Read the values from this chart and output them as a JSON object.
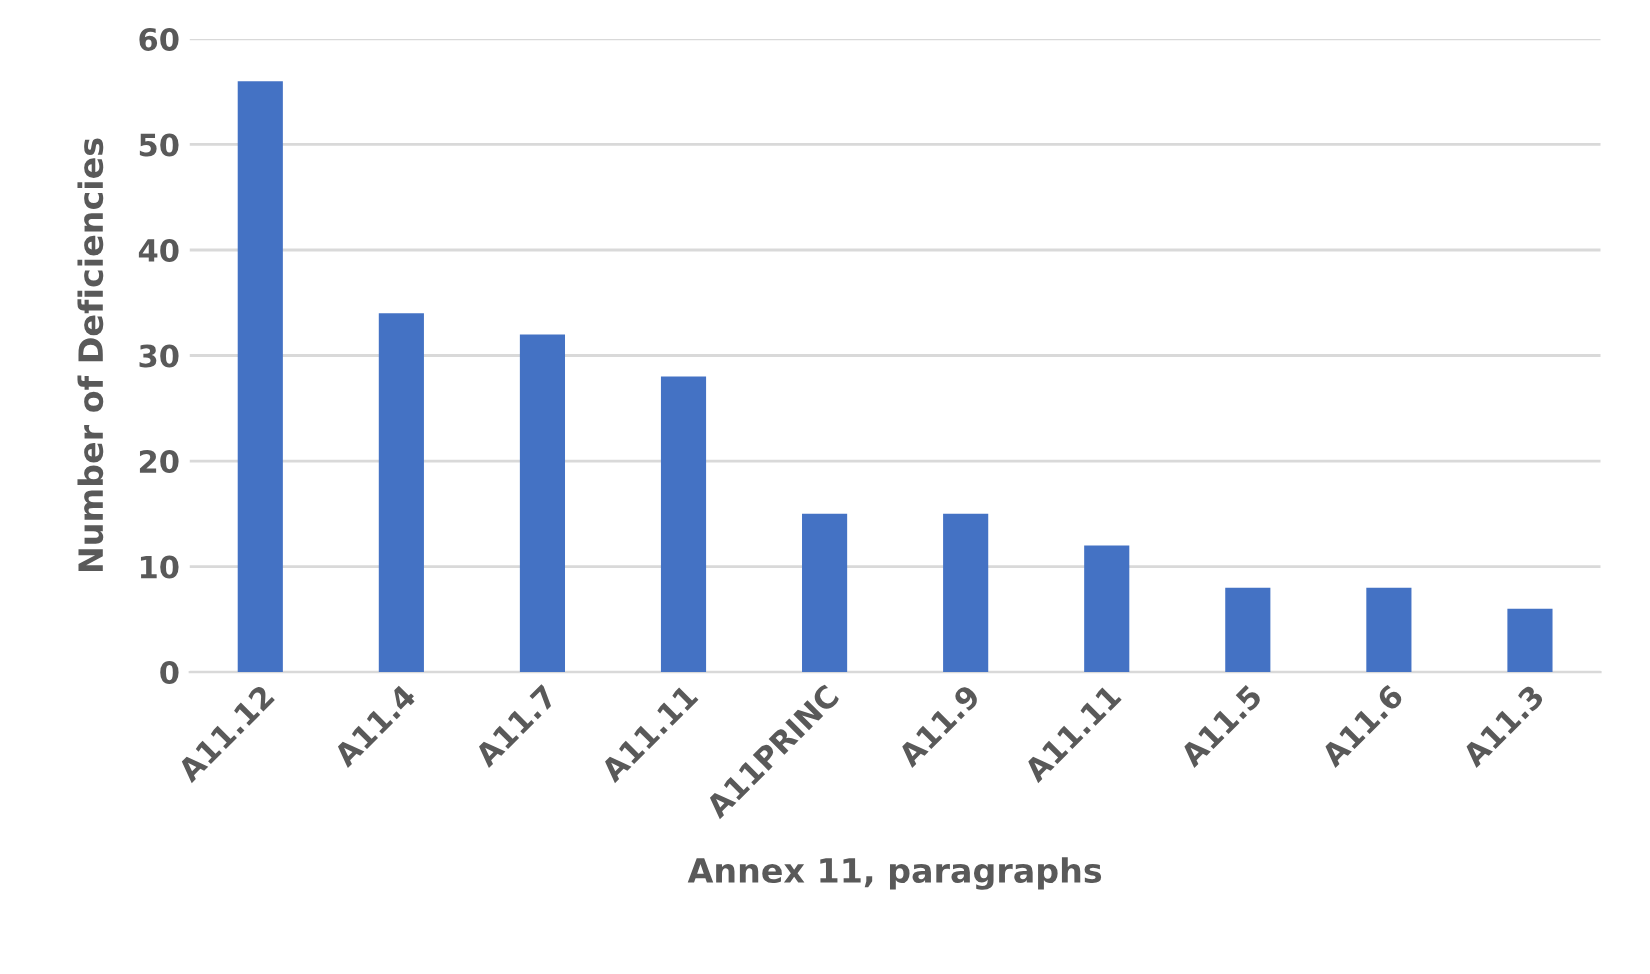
{
  "chart_data": {
    "type": "bar",
    "xlabel": "Annex 11, paragraphs",
    "ylabel": "Number of Deficiencies",
    "categories": [
      "A11.12",
      "A11.4",
      "A11.7",
      "A11.11",
      "A11PRINC",
      "A11.9",
      "A11.11",
      "A11.5",
      "A11.6",
      "A11.3"
    ],
    "values": [
      56,
      34,
      32,
      28,
      15,
      15,
      12,
      8,
      8,
      6
    ],
    "color": "#4472c4",
    "ylim": [
      0,
      60
    ],
    "yticks": [
      0,
      10,
      20,
      30,
      40,
      50,
      60
    ],
    "grid": "y"
  }
}
